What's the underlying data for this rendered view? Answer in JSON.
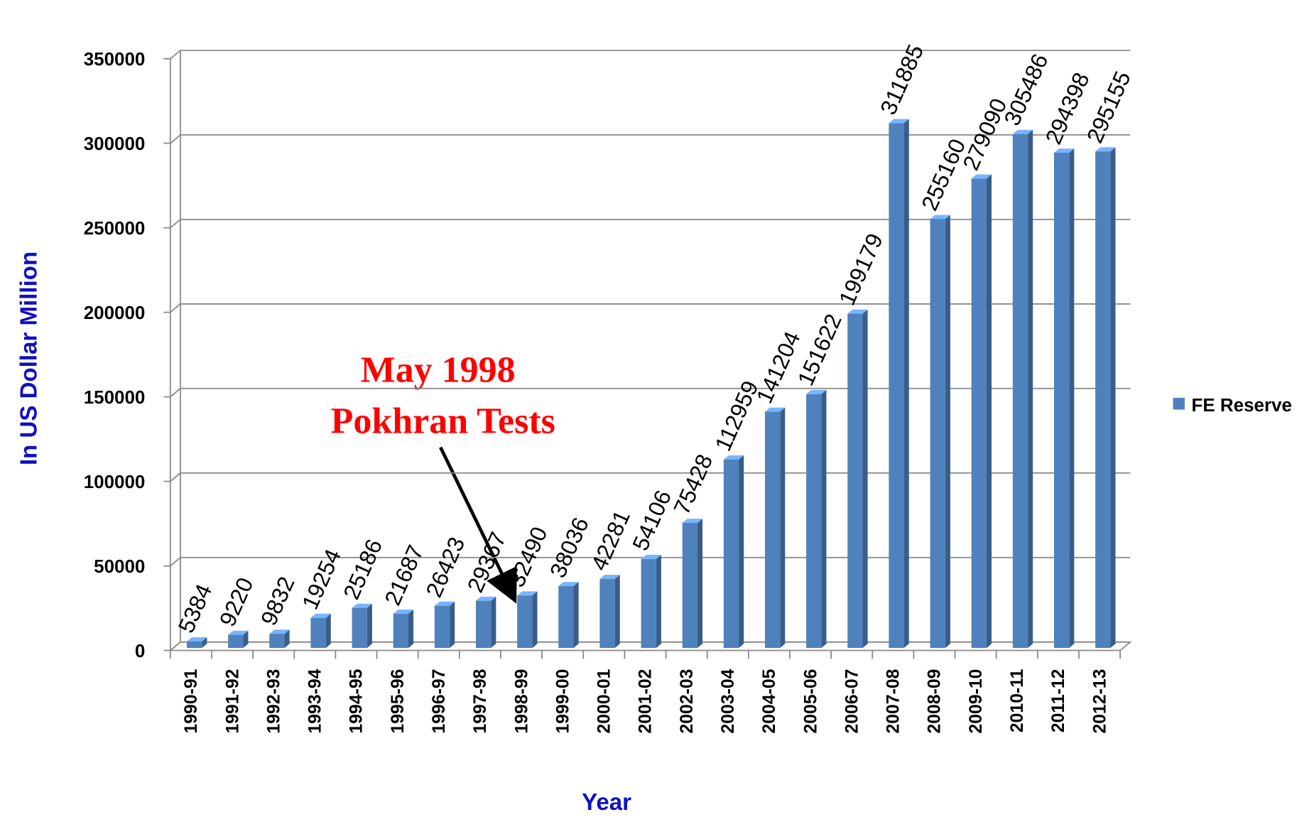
{
  "chart_data": {
    "type": "bar3d",
    "y_label": "In US Dollar Million",
    "x_label": "Year",
    "annotation": [
      "May 1998",
      "Pokhran Tests"
    ],
    "categories": [
      "1990-91",
      "1991-92",
      "1992-93",
      "1993-94",
      "1994-95",
      "1995-96",
      "1996-97",
      "1997-98",
      "1998-99",
      "1999-00",
      "2000-01",
      "2001-02",
      "2002-03",
      "2003-04",
      "2004-05",
      "2005-06",
      "2006-07",
      "2007-08",
      "2008-09",
      "2009-10",
      "2010-11",
      "2011-12",
      "2012-13"
    ],
    "series": [
      {
        "name": "FE Reserve",
        "color": "#4f81bd",
        "values": [
          5384,
          9220,
          9832,
          19254,
          25186,
          21687,
          26423,
          29367,
          32490,
          38036,
          42281,
          54106,
          75428,
          112959,
          141204,
          151622,
          199179,
          311885,
          255160,
          279090,
          305486,
          294398,
          295155
        ]
      }
    ],
    "ylim": [
      0,
      350000
    ],
    "yticks": [
      0,
      50000,
      100000,
      150000,
      200000,
      250000,
      300000,
      350000
    ],
    "grid": true,
    "legend": "right"
  }
}
